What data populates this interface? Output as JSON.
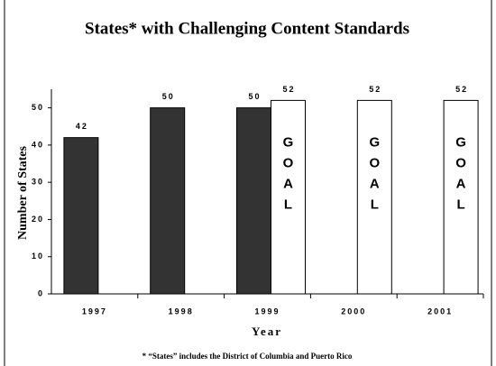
{
  "chart_data": {
    "type": "bar",
    "title": "States* with Challenging Content Standards",
    "x_label": "Year",
    "y_label": "Number of States",
    "footnote": "* “States” includes the District of Columbia and Puerto Rico",
    "bar_annotation": "GOAL",
    "categories": [
      "1997",
      "1998",
      "1999",
      "2000",
      "2001"
    ],
    "series": [
      {
        "color": "#333333",
        "values": [
          42,
          50,
          50,
          null,
          null
        ]
      },
      {
        "color": "#ffffff",
        "values": [
          null,
          null,
          52,
          52,
          52
        ],
        "annotated": true
      }
    ],
    "ylim": [
      0,
      55
    ],
    "yticks": [
      0,
      10,
      20,
      30,
      40,
      50
    ],
    "grid": false
  }
}
